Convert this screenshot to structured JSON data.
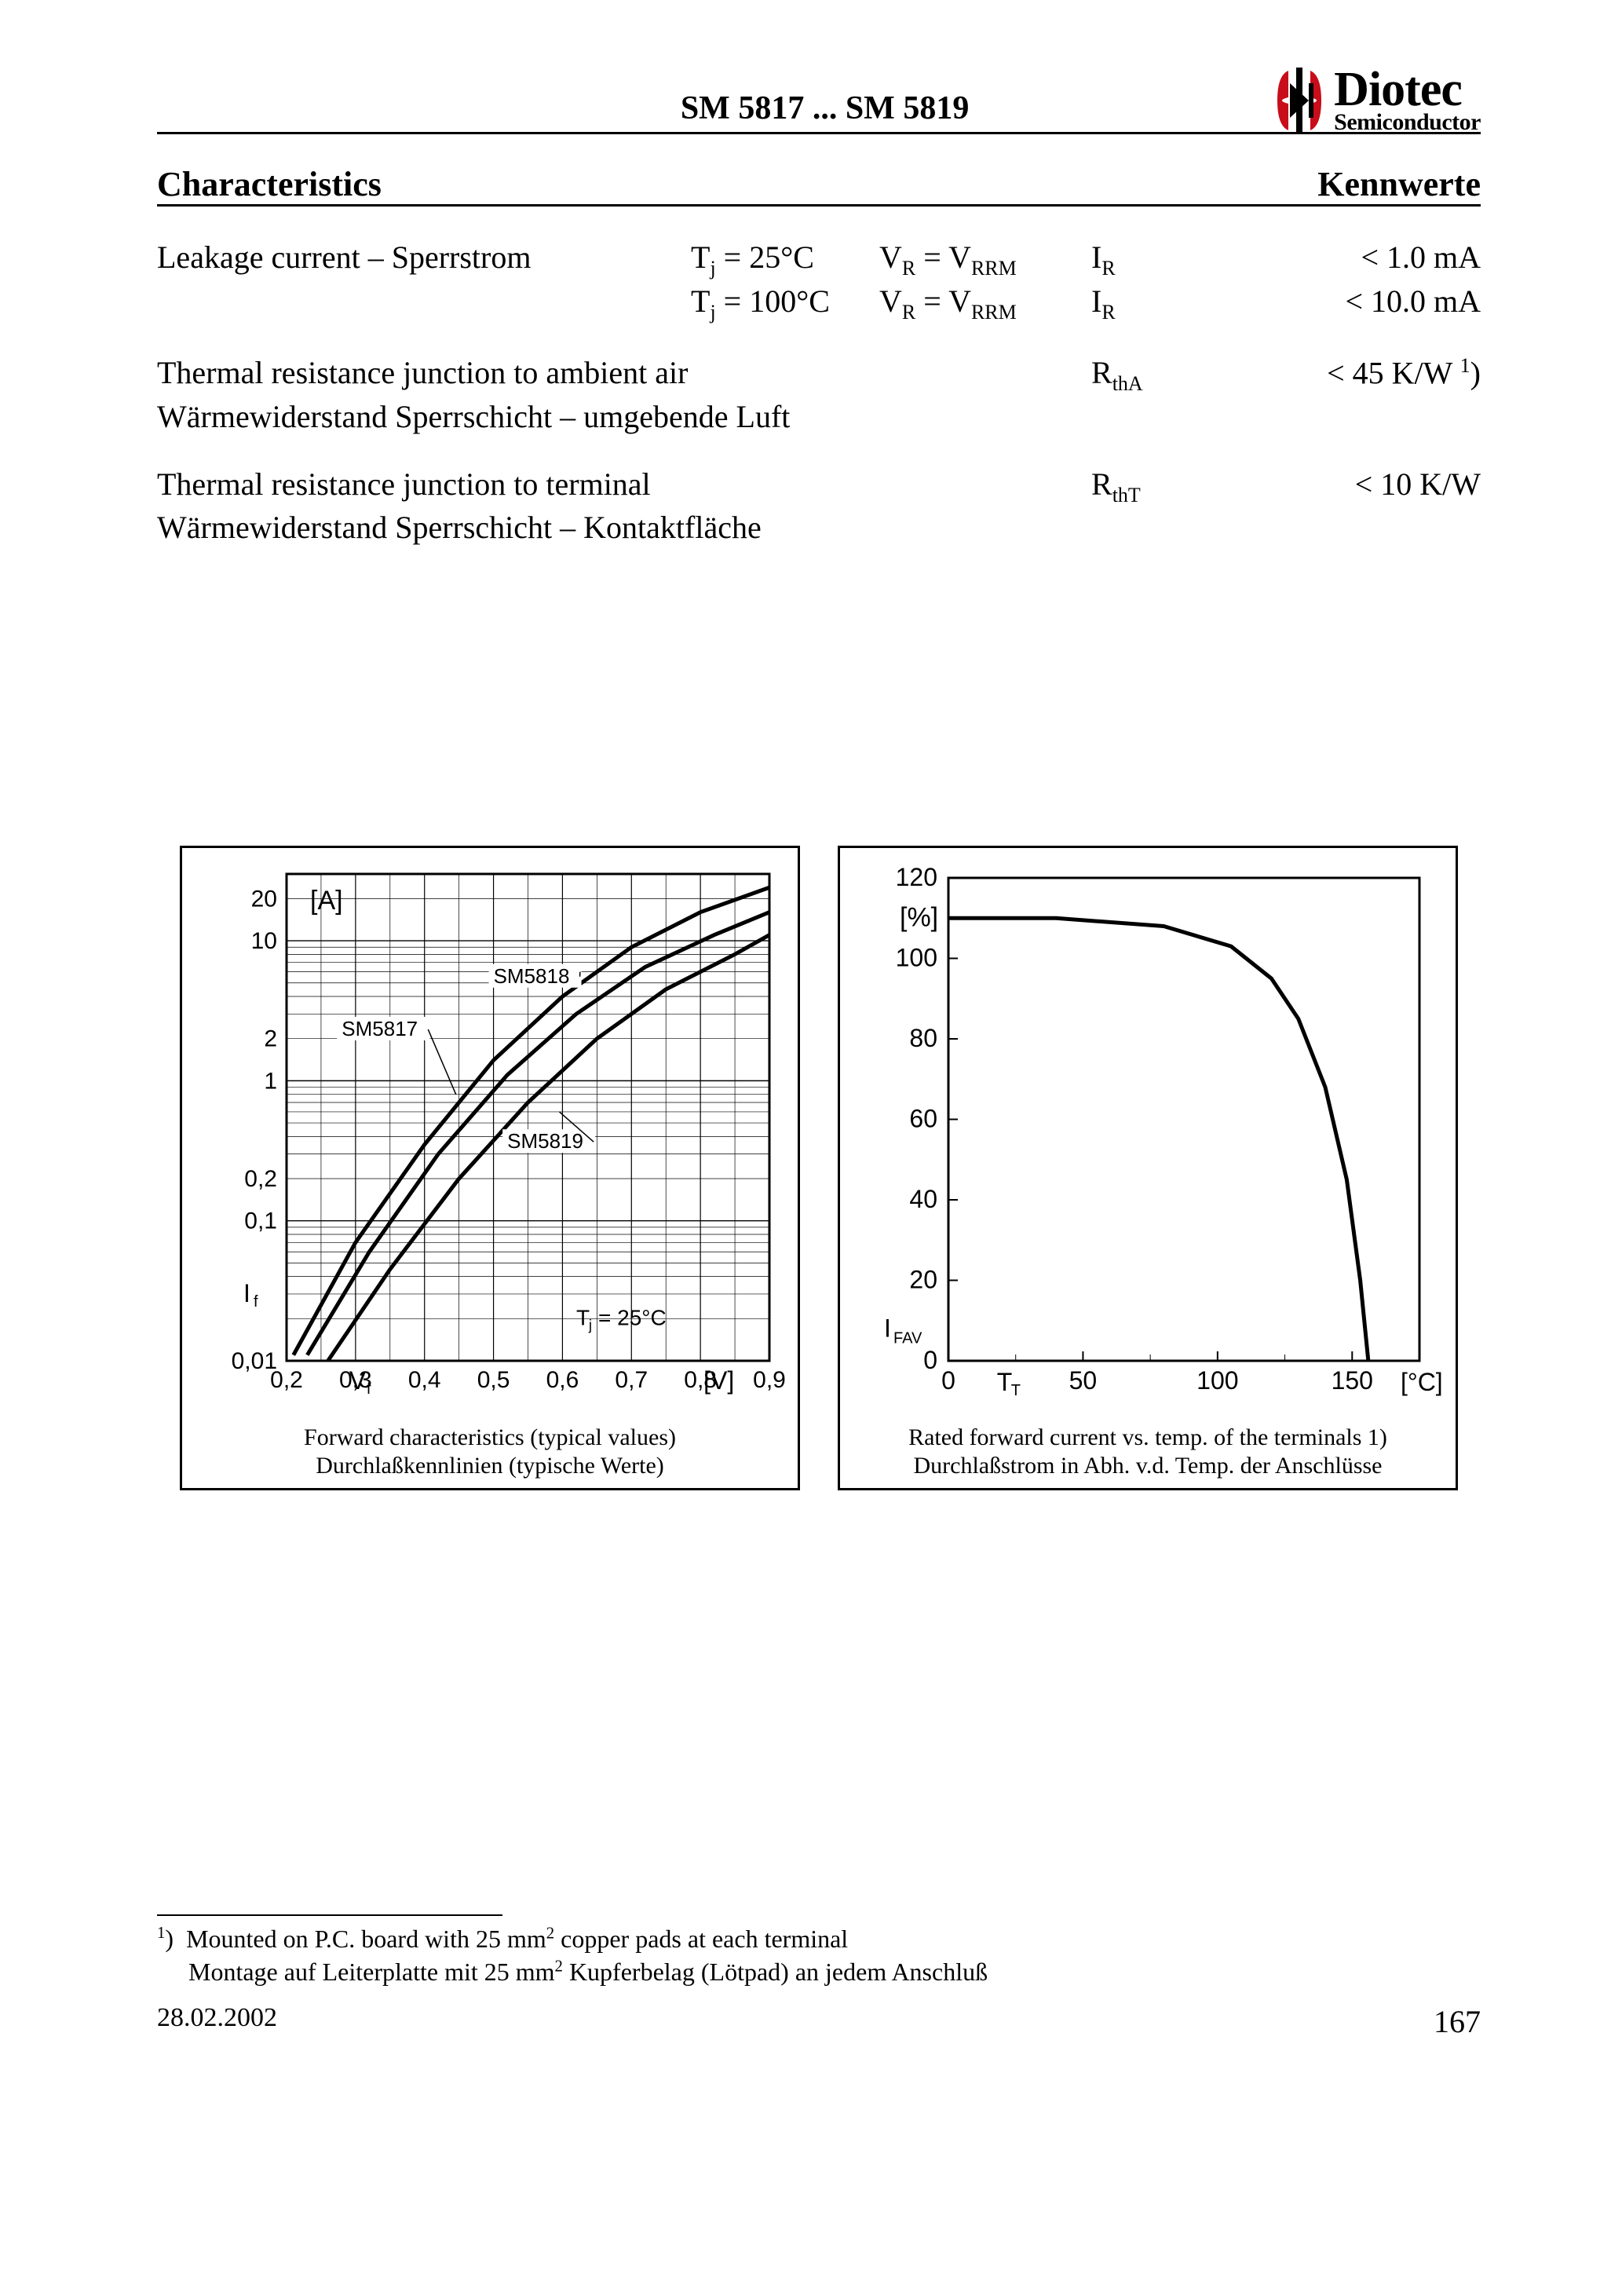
{
  "header": {
    "title": "SM 5817 ... SM 5819",
    "logo": {
      "main": "Diotec",
      "sub": "Semiconductor",
      "glyph_color": "#c70e1a"
    }
  },
  "section": {
    "left": "Characteristics",
    "right": "Kennwerte"
  },
  "specs": {
    "leakage": {
      "desc": "Leakage current – Sperrstrom",
      "rows": [
        {
          "cond1": "Tj = 25°C",
          "cond2": "VR = VRRM",
          "sym": "IR",
          "val": "< 1.0 mA"
        },
        {
          "cond1": "Tj = 100°C",
          "cond2": "VR = VRRM",
          "sym": "IR",
          "val": "< 10.0 mA"
        }
      ]
    },
    "rthA": {
      "desc_en": "Thermal resistance junction to ambient air",
      "desc_de": "Wärmewiderstand Sperrschicht – umgebende Luft",
      "sym": "RthA",
      "val": "< 45 K/W 1)"
    },
    "rthT": {
      "desc_en": "Thermal resistance junction to terminal",
      "desc_de": "Wärmewiderstand Sperrschicht – Kontaktfläche",
      "sym": "RthT",
      "val": "< 10 K/W"
    }
  },
  "chart_left": {
    "type": "line-log",
    "xlabel": "Vf",
    "xunit": "[V]",
    "ylabel": "If",
    "yunit": "[A]",
    "xlim": [
      0.2,
      0.9
    ],
    "xticks": [
      0.2,
      0.3,
      0.4,
      0.5,
      0.6,
      0.7,
      0.8,
      0.9
    ],
    "ylim_log": [
      0.01,
      30
    ],
    "ytick_labels": [
      "0,01",
      "0,1",
      "0,2",
      "1",
      "2",
      "10",
      "20"
    ],
    "ytick_values": [
      0.01,
      0.1,
      0.2,
      1,
      2,
      10,
      20
    ],
    "annotation": "Tj = 25°C",
    "series": [
      {
        "name": "SM5818",
        "label_xy": [
          0.49,
          5.0
        ],
        "points": [
          [
            0.21,
            0.011
          ],
          [
            0.3,
            0.07
          ],
          [
            0.4,
            0.35
          ],
          [
            0.5,
            1.4
          ],
          [
            0.6,
            4.0
          ],
          [
            0.7,
            9.0
          ],
          [
            0.8,
            16
          ],
          [
            0.9,
            24
          ]
        ]
      },
      {
        "name": "SM5817",
        "label_xy": [
          0.31,
          2.0
        ],
        "points": [
          [
            0.23,
            0.011
          ],
          [
            0.32,
            0.06
          ],
          [
            0.42,
            0.3
          ],
          [
            0.52,
            1.1
          ],
          [
            0.62,
            3.0
          ],
          [
            0.72,
            6.5
          ],
          [
            0.82,
            11
          ],
          [
            0.9,
            16
          ]
        ]
      },
      {
        "name": "SM5819",
        "label_xy": [
          0.54,
          0.35
        ],
        "points": [
          [
            0.26,
            0.01
          ],
          [
            0.35,
            0.045
          ],
          [
            0.45,
            0.2
          ],
          [
            0.55,
            0.7
          ],
          [
            0.65,
            2.0
          ],
          [
            0.75,
            4.5
          ],
          [
            0.85,
            8.0
          ],
          [
            0.9,
            11
          ]
        ]
      }
    ],
    "line_color": "#000000",
    "line_width": 5,
    "grid_color": "#000000",
    "caption_en": "Forward characteristics (typical values)",
    "caption_de": "Durchlaßkennlinien (typische Werte)"
  },
  "chart_right": {
    "type": "line",
    "xlabel": "TT",
    "xunit": "[°C]",
    "ylabel": "IFAV",
    "yunit": "[%]",
    "xlim": [
      0,
      175
    ],
    "xticks": [
      0,
      50,
      100,
      150
    ],
    "ylim": [
      0,
      120
    ],
    "yticks": [
      0,
      20,
      40,
      60,
      80,
      100,
      120
    ],
    "series": [
      {
        "name": "derate",
        "points": [
          [
            0,
            110
          ],
          [
            40,
            110
          ],
          [
            80,
            108
          ],
          [
            105,
            103
          ],
          [
            120,
            95
          ],
          [
            130,
            85
          ],
          [
            140,
            68
          ],
          [
            148,
            45
          ],
          [
            153,
            20
          ],
          [
            156,
            0
          ]
        ]
      }
    ],
    "line_color": "#000000",
    "line_width": 5,
    "caption_en": "Rated forward current vs. temp. of the terminals 1)",
    "caption_de": "Durchlaßstrom in Abh. v.d. Temp. der Anschlüsse"
  },
  "footnote": {
    "marker": "1)",
    "en": "Mounted on P.C. board with 25 mm2 copper pads at each terminal",
    "de": "Montage auf Leiterplatte mit 25 mm2 Kupferbelag (Lötpad) an jedem Anschluß"
  },
  "footer": {
    "date": "28.02.2002",
    "page": "167"
  }
}
